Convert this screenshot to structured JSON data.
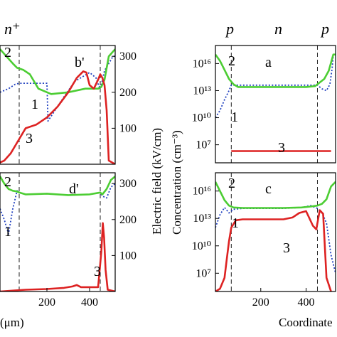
{
  "top_labels": [
    "n⁺",
    "p",
    "n",
    "p"
  ],
  "axis_labels": {
    "left_x": "(μm)",
    "right_x": "Coordinate",
    "efield": "Electric field (kV/cm)",
    "conc": "Concentration (cm⁻³)"
  },
  "chart_data": [
    {
      "type": "line",
      "panel": "b'",
      "y_axis": {
        "label": "Electric field (kV/cm)",
        "ticks": [
          "100",
          "200",
          "300"
        ],
        "ylim": [
          0,
          330
        ]
      },
      "x_axis": {
        "ticks": [],
        "xlim": [
          -20,
          520
        ]
      },
      "dividers_x": [
        70,
        450
      ],
      "curve_labels": [
        "2",
        "1",
        "3"
      ],
      "series": [
        {
          "id": "1",
          "style": "dotted",
          "color": "#1f3fbf",
          "x": [
            -20,
            20,
            50,
            70,
            200,
            205,
            260,
            330,
            400,
            430,
            445,
            455,
            470,
            490,
            510,
            520
          ],
          "y": [
            200,
            210,
            222,
            225,
            225,
            120,
            170,
            230,
            255,
            240,
            215,
            220,
            260,
            280,
            300,
            300
          ]
        },
        {
          "id": "2",
          "style": "solid",
          "color": "#4ccd33",
          "x": [
            -20,
            10,
            40,
            60,
            90,
            120,
            160,
            220,
            300,
            380,
            440,
            455,
            470,
            490,
            520
          ],
          "y": [
            320,
            300,
            280,
            268,
            262,
            250,
            210,
            195,
            200,
            210,
            210,
            215,
            235,
            300,
            320
          ]
        },
        {
          "id": "3",
          "style": "solid",
          "color": "#dd2222",
          "x": [
            -20,
            0,
            30,
            60,
            100,
            150,
            200,
            250,
            300,
            340,
            370,
            385,
            400,
            420,
            440,
            450,
            460,
            470,
            480,
            490,
            520
          ],
          "y": [
            5,
            10,
            30,
            60,
            100,
            110,
            130,
            160,
            200,
            240,
            258,
            255,
            220,
            210,
            235,
            250,
            240,
            220,
            150,
            10,
            0
          ]
        }
      ]
    },
    {
      "type": "line",
      "panel": "a",
      "y_axis": {
        "label": "Concentration (cm⁻³)",
        "ticks": [
          "10⁷",
          "10¹⁰",
          "10¹³",
          "10¹⁶"
        ],
        "ylim": [
          5,
          18
        ]
      },
      "x_axis": {
        "ticks": [],
        "xlim": [
          0,
          530
        ]
      },
      "dividers_x": [
        70,
        450
      ],
      "curve_labels": [
        "2",
        "1",
        "3"
      ],
      "series": [
        {
          "id": "1",
          "style": "dotted",
          "color": "#1f3fbf",
          "x": [
            0,
            20,
            40,
            60,
            70,
            450,
            470,
            490,
            505,
            515,
            520,
            530
          ],
          "y": [
            10,
            10.8,
            12,
            13,
            13.6,
            13.6,
            13.2,
            13.0,
            13.7,
            15.5,
            17,
            17
          ]
        },
        {
          "id": "2",
          "style": "solid",
          "color": "#4ccd33",
          "x": [
            0,
            20,
            40,
            60,
            80,
            100,
            400,
            440,
            460,
            480,
            500,
            520,
            530
          ],
          "y": [
            17,
            16.3,
            15.3,
            14.3,
            13.7,
            13.4,
            13.4,
            13.5,
            13.9,
            14.3,
            15.2,
            17,
            17
          ]
        },
        {
          "id": "3",
          "style": "solid",
          "color": "#dd2222",
          "x": [
            70,
            510
          ],
          "y": [
            6.3,
            6.3
          ]
        }
      ]
    },
    {
      "type": "line",
      "panel": "d'",
      "y_axis": {
        "label": "Electric field (kV/cm)",
        "ticks": [
          "100",
          "200",
          "300"
        ],
        "ylim": [
          0,
          330
        ]
      },
      "x_axis": {
        "ticks": [
          "200",
          "400"
        ],
        "xlim": [
          -20,
          520
        ]
      },
      "dividers_x": [
        70,
        450
      ],
      "curve_labels": [
        "2",
        "1",
        "3"
      ],
      "series": [
        {
          "id": "1",
          "style": "dotted",
          "color": "#1f3fbf",
          "x": [
            -20,
            0,
            20,
            40,
            60,
            70,
            100,
            200,
            300,
            400,
            450,
            460,
            480,
            500,
            520
          ],
          "y": [
            230,
            200,
            160,
            230,
            280,
            275,
            270,
            272,
            268,
            270,
            275,
            265,
            260,
            290,
            300
          ]
        },
        {
          "id": "2",
          "style": "solid",
          "color": "#4ccd33",
          "x": [
            -20,
            0,
            20,
            40,
            60,
            70,
            100,
            200,
            300,
            400,
            450,
            460,
            480,
            500,
            520
          ],
          "y": [
            320,
            300,
            285,
            280,
            278,
            275,
            270,
            272,
            268,
            270,
            275,
            270,
            285,
            310,
            320
          ]
        },
        {
          "id": "3",
          "style": "solid",
          "color": "#dd2222",
          "x": [
            -20,
            50,
            100,
            200,
            280,
            320,
            340,
            360,
            400,
            440,
            455,
            462,
            468,
            475,
            485,
            520
          ],
          "y": [
            0,
            3,
            5,
            7,
            10,
            14,
            18,
            12,
            12,
            12,
            110,
            190,
            150,
            60,
            5,
            0
          ]
        }
      ]
    },
    {
      "type": "line",
      "panel": "c",
      "y_axis": {
        "label": "Concentration (cm⁻³)",
        "ticks": [
          "10⁷",
          "10¹⁰",
          "10¹³",
          "10¹⁶"
        ],
        "ylim": [
          5,
          18
        ]
      },
      "x_axis": {
        "label": "Coordinate",
        "ticks": [
          "200",
          "400"
        ],
        "xlim": [
          0,
          530
        ]
      },
      "dividers_x": [
        70,
        450
      ],
      "curve_labels": [
        "2",
        "1",
        "3"
      ],
      "series": [
        {
          "id": "1",
          "style": "dotted",
          "color": "#1f3fbf",
          "x": [
            0,
            20,
            40,
            60,
            80,
            120,
            300,
            380,
            420,
            450,
            470,
            490,
            510,
            530
          ],
          "y": [
            12,
            13.4,
            14.2,
            13.6,
            14.0,
            14.1,
            14.1,
            14.2,
            14.4,
            14.1,
            13.6,
            12.5,
            9,
            7
          ]
        },
        {
          "id": "2",
          "style": "solid",
          "color": "#4ccd33",
          "x": [
            0,
            20,
            40,
            60,
            80,
            120,
            300,
            380,
            420,
            450,
            470,
            490,
            510,
            530
          ],
          "y": [
            17,
            16.0,
            15.0,
            14.4,
            14.2,
            14.15,
            14.15,
            14.2,
            14.3,
            14.4,
            14.6,
            15.1,
            16.5,
            17
          ]
        },
        {
          "id": "3",
          "style": "solid",
          "color": "#dd2222",
          "x": [
            0,
            20,
            40,
            50,
            60,
            70,
            90,
            120,
            300,
            340,
            370,
            400,
            430,
            445,
            460,
            475,
            490,
            510
          ],
          "y": [
            5,
            5.3,
            6.5,
            8.5,
            10.5,
            12.0,
            12.8,
            12.9,
            12.9,
            13.1,
            13.6,
            13.8,
            12.2,
            11.8,
            13.9,
            13.5,
            6.5,
            5
          ]
        }
      ]
    }
  ]
}
